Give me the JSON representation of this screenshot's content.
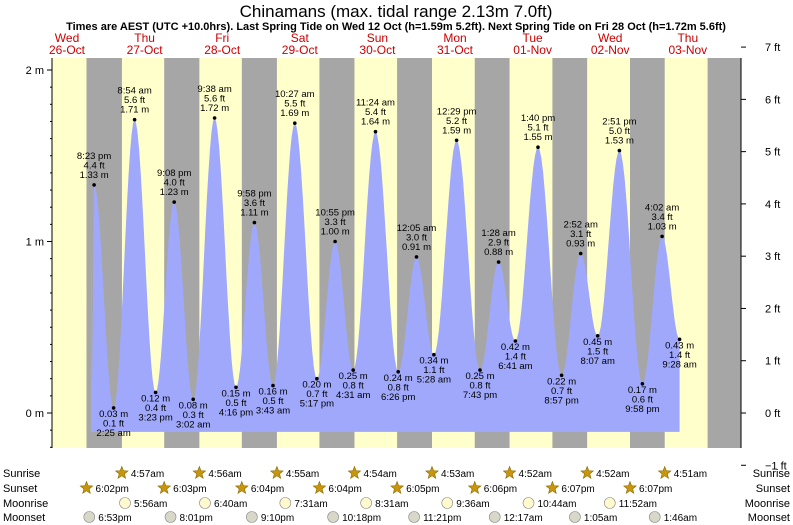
{
  "chart_data": {
    "type": "area",
    "title": "Chinamans (max. tidal range 2.13m 7.0ft)",
    "subtitle": "Times are AEST (UTC +10.0hrs). Last Spring Tide on Wed 12 Oct (h=1.59m 5.2ft). Next Spring Tide on Fri 28 Oct (h=1.72m 5.6ft)",
    "days": [
      {
        "dow": "Wed",
        "date": "26-Oct"
      },
      {
        "dow": "Thu",
        "date": "27-Oct"
      },
      {
        "dow": "Fri",
        "date": "28-Oct"
      },
      {
        "dow": "Sat",
        "date": "29-Oct"
      },
      {
        "dow": "Sun",
        "date": "30-Oct"
      },
      {
        "dow": "Mon",
        "date": "31-Oct"
      },
      {
        "dow": "Tue",
        "date": "01-Nov"
      },
      {
        "dow": "Wed",
        "date": "02-Nov"
      },
      {
        "dow": "Thu",
        "date": "03-Nov"
      }
    ],
    "y_left": {
      "unit": "m",
      "ticks": [
        "0 m",
        "1 m",
        "2 m"
      ],
      "range": [
        -0.25,
        2.13
      ]
    },
    "y_right": {
      "unit": "ft",
      "ticks": [
        "−1 ft",
        "0 ft",
        "1 ft",
        "2 ft",
        "3 ft",
        "4 ft",
        "5 ft",
        "6 ft",
        "7 ft"
      ]
    },
    "tides": [
      {
        "day": 0,
        "time": "8:23 pm",
        "m": 1.33,
        "ft": "4.4 ft",
        "m_label": "1.33 m",
        "type": "high"
      },
      {
        "day": 1,
        "time": "2:25 am",
        "m": 0.03,
        "ft": "0.1 ft",
        "m_label": "0.03 m",
        "type": "low"
      },
      {
        "day": 1,
        "time": "8:54 am",
        "m": 1.71,
        "ft": "5.6 ft",
        "m_label": "1.71 m",
        "type": "high"
      },
      {
        "day": 1,
        "time": "3:23 pm",
        "m": 0.12,
        "ft": "0.4 ft",
        "m_label": "0.12 m",
        "type": "low"
      },
      {
        "day": 1,
        "time": "9:08 pm",
        "m": 1.23,
        "ft": "4.0 ft",
        "m_label": "1.23 m",
        "type": "high"
      },
      {
        "day": 2,
        "time": "3:02 am",
        "m": 0.08,
        "ft": "0.3 ft",
        "m_label": "0.08 m",
        "type": "low"
      },
      {
        "day": 2,
        "time": "9:38 am",
        "m": 1.72,
        "ft": "5.6 ft",
        "m_label": "1.72 m",
        "type": "high"
      },
      {
        "day": 2,
        "time": "4:16 pm",
        "m": 0.15,
        "ft": "0.5 ft",
        "m_label": "0.15 m",
        "type": "low"
      },
      {
        "day": 2,
        "time": "9:58 pm",
        "m": 1.11,
        "ft": "3.6 ft",
        "m_label": "1.11 m",
        "type": "high"
      },
      {
        "day": 3,
        "time": "3:43 am",
        "m": 0.16,
        "ft": "0.5 ft",
        "m_label": "0.16 m",
        "type": "low"
      },
      {
        "day": 3,
        "time": "10:27 am",
        "m": 1.69,
        "ft": "5.5 ft",
        "m_label": "1.69 m",
        "type": "high"
      },
      {
        "day": 3,
        "time": "5:17 pm",
        "m": 0.2,
        "ft": "0.7 ft",
        "m_label": "0.20 m",
        "type": "low"
      },
      {
        "day": 3,
        "time": "10:55 pm",
        "m": 1.0,
        "ft": "3.3 ft",
        "m_label": "1.00 m",
        "type": "high"
      },
      {
        "day": 4,
        "time": "4:31 am",
        "m": 0.25,
        "ft": "0.8 ft",
        "m_label": "0.25 m",
        "type": "low"
      },
      {
        "day": 4,
        "time": "11:24 am",
        "m": 1.64,
        "ft": "5.4 ft",
        "m_label": "1.64 m",
        "type": "high"
      },
      {
        "day": 4,
        "time": "6:26 pm",
        "m": 0.24,
        "ft": "0.8 ft",
        "m_label": "0.24 m",
        "type": "low"
      },
      {
        "day": 5,
        "time": "12:05 am",
        "m": 0.91,
        "ft": "3.0 ft",
        "m_label": "0.91 m",
        "type": "high"
      },
      {
        "day": 5,
        "time": "5:28 am",
        "m": 0.34,
        "ft": "1.1 ft",
        "m_label": "0.34 m",
        "type": "low"
      },
      {
        "day": 5,
        "time": "12:29 pm",
        "m": 1.59,
        "ft": "5.2 ft",
        "m_label": "1.59 m",
        "type": "high"
      },
      {
        "day": 5,
        "time": "7:43 pm",
        "m": 0.25,
        "ft": "0.8 ft",
        "m_label": "0.25 m",
        "type": "low"
      },
      {
        "day": 6,
        "time": "1:28 am",
        "m": 0.88,
        "ft": "2.9 ft",
        "m_label": "0.88 m",
        "type": "high"
      },
      {
        "day": 6,
        "time": "6:41 am",
        "m": 0.42,
        "ft": "1.4 ft",
        "m_label": "0.42 m",
        "type": "low"
      },
      {
        "day": 6,
        "time": "1:40 pm",
        "m": 1.55,
        "ft": "5.1 ft",
        "m_label": "1.55 m",
        "type": "high"
      },
      {
        "day": 6,
        "time": "8:57 pm",
        "m": 0.22,
        "ft": "0.7 ft",
        "m_label": "0.22 m",
        "type": "low"
      },
      {
        "day": 7,
        "time": "2:52 am",
        "m": 0.93,
        "ft": "3.1 ft",
        "m_label": "0.93 m",
        "type": "high"
      },
      {
        "day": 7,
        "time": "8:07 am",
        "m": 0.45,
        "ft": "1.5 ft",
        "m_label": "0.45 m",
        "type": "low"
      },
      {
        "day": 7,
        "time": "2:51 pm",
        "m": 1.53,
        "ft": "5.0 ft",
        "m_label": "1.53 m",
        "type": "high"
      },
      {
        "day": 7,
        "time": "9:58 pm",
        "m": 0.17,
        "ft": "0.6 ft",
        "m_label": "0.17 m",
        "type": "low"
      },
      {
        "day": 8,
        "time": "4:02 am",
        "m": 1.03,
        "ft": "3.4 ft",
        "m_label": "1.03 m",
        "type": "high"
      },
      {
        "day": 8,
        "time": "9:28 am",
        "m": 0.43,
        "ft": "1.4 ft",
        "m_label": "0.43 m",
        "type": "low"
      }
    ],
    "astro": {
      "labels": [
        "Sunrise",
        "Sunset",
        "Moonrise",
        "Moonset"
      ],
      "sunrise": [
        "4:57am",
        "4:56am",
        "4:55am",
        "4:54am",
        "4:53am",
        "4:52am",
        "4:52am",
        "4:51am"
      ],
      "sunset": [
        "6:02pm",
        "6:03pm",
        "6:04pm",
        "6:04pm",
        "6:05pm",
        "6:06pm",
        "6:07pm",
        "6:07pm"
      ],
      "moonrise": [
        "5:56am",
        "6:40am",
        "7:31am",
        "8:31am",
        "9:36am",
        "10:44am",
        "11:52am"
      ],
      "moonset": [
        "6:53pm",
        "8:01pm",
        "9:10pm",
        "10:18pm",
        "11:21pm",
        "12:17am",
        "1:05am",
        "1:46am"
      ]
    },
    "colors": {
      "water": "#9fa8fb",
      "day": "#ffffcc",
      "night": "#a6a6a6",
      "day_label": "#cc0000",
      "sun": "#c8960c",
      "moon": "#fffacd"
    },
    "grid": false
  }
}
